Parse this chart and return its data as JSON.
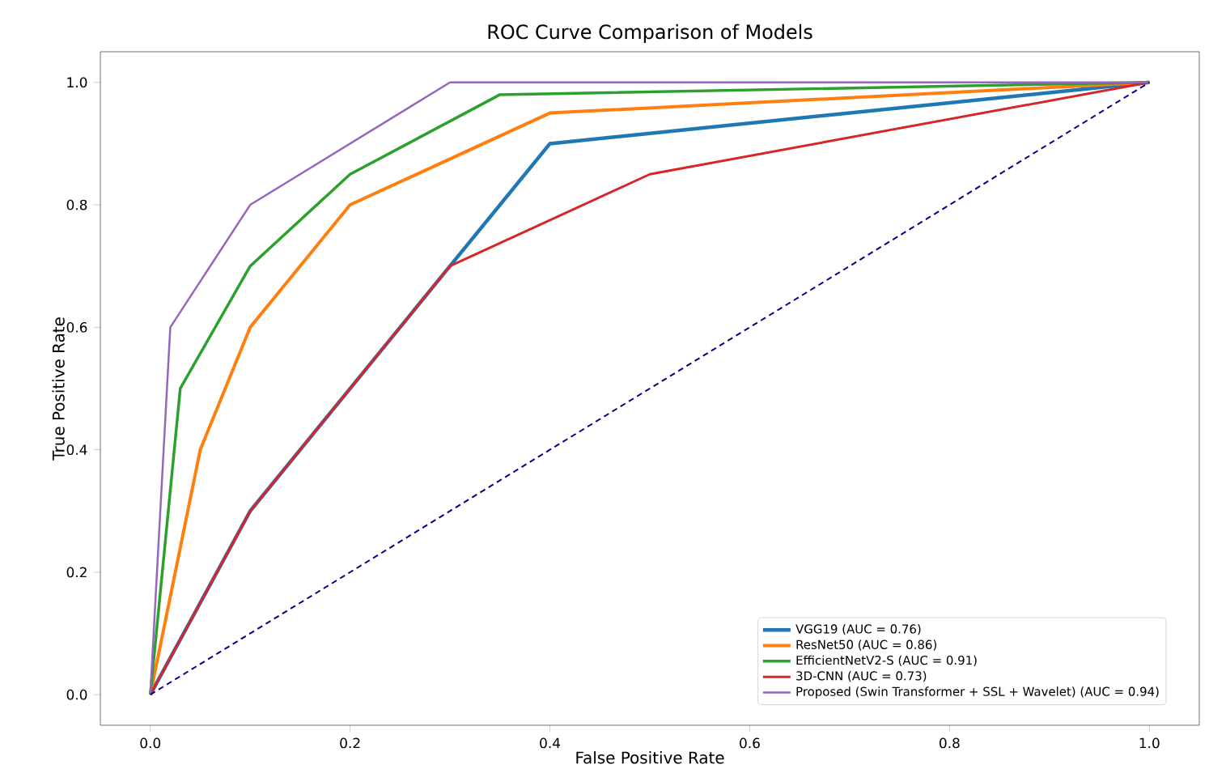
{
  "chart_data": {
    "type": "line",
    "title": "ROC Curve Comparison of Models",
    "xlabel": "False Positive Rate",
    "ylabel": "True Positive Rate",
    "xlim": [
      -0.05,
      1.05
    ],
    "ylim": [
      -0.05,
      1.05
    ],
    "xticks": [
      {
        "value": 0,
        "label": "0.0"
      },
      {
        "value": 0.2,
        "label": "0.2"
      },
      {
        "value": 0.4,
        "label": "0.4"
      },
      {
        "value": 0.6,
        "label": "0.6"
      },
      {
        "value": 0.8,
        "label": "0.8"
      },
      {
        "value": 1,
        "label": "1.0"
      }
    ],
    "yticks": [
      {
        "value": 0,
        "label": "0.0"
      },
      {
        "value": 0.2,
        "label": "0.2"
      },
      {
        "value": 0.4,
        "label": "0.4"
      },
      {
        "value": 0.6,
        "label": "0.6"
      },
      {
        "value": 0.8,
        "label": "0.8"
      },
      {
        "value": 1,
        "label": "1.0"
      }
    ],
    "legend": "bottom right",
    "marker": "none",
    "line_style": "solid",
    "series": [
      {
        "name": "VGG19 (AUC = 0.76)",
        "color": "#1f77b4",
        "x": [
          0,
          0.1,
          0.3,
          0.4,
          1
        ],
        "values": [
          0,
          0.3,
          0.7,
          0.9,
          1
        ]
      },
      {
        "name": "ResNet50 (AUC = 0.86)",
        "color": "#ff7f0e",
        "x": [
          0,
          0.05,
          0.1,
          0.2,
          0.4,
          1
        ],
        "values": [
          0,
          0.4,
          0.6,
          0.8,
          0.95,
          1
        ]
      },
      {
        "name": "EfficientNetV2-S (AUC = 0.91)",
        "color": "#2ca02c",
        "x": [
          0,
          0.03,
          0.1,
          0.2,
          0.35,
          1
        ],
        "values": [
          0,
          0.5,
          0.7,
          0.85,
          0.98,
          1
        ]
      },
      {
        "name": "3D-CNN (AUC = 0.73)",
        "color": "#d62728",
        "x": [
          0,
          0.1,
          0.3,
          0.5,
          1
        ],
        "values": [
          0,
          0.3,
          0.7,
          0.85,
          1
        ]
      },
      {
        "name": "Proposed (Swin Transformer + SSL + Wavelet) (AUC = 0.94)",
        "color": "#9467bd",
        "x": [
          0,
          0.02,
          0.1,
          0.3,
          1
        ],
        "values": [
          0,
          0.6,
          0.8,
          1,
          1
        ]
      },
      {
        "color": "#000080",
        "line_style": "dashed",
        "x": [
          0,
          1
        ],
        "values": [
          0,
          1
        ]
      }
    ]
  }
}
